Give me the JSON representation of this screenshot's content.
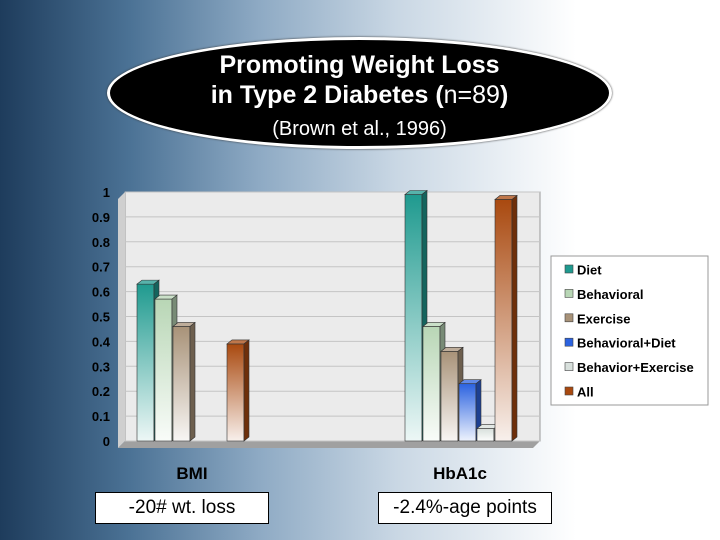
{
  "slide": {
    "title_line1": "Promoting Weight Loss",
    "title_line2_prefix": "in Type 2 Diabetes (",
    "title_line2_n": "n=89",
    "title_line2_suffix": ")",
    "subtitle": "(Brown et al., 1996)",
    "note_left": "-20# wt. loss",
    "note_right": "-2.4%-age points"
  },
  "chart_data": {
    "type": "bar",
    "categories": [
      "BMI",
      "HbA1c"
    ],
    "ylim": [
      0,
      1
    ],
    "yticks": [
      "0",
      "0.1",
      "0.2",
      "0.3",
      "0.4",
      "0.5",
      "0.6",
      "0.7",
      "0.8",
      "0.9",
      "1"
    ],
    "legend_position": "right",
    "series": [
      {
        "name": "Diet",
        "values": [
          0.63,
          0.99
        ],
        "color": "#1f9a8f"
      },
      {
        "name": "Behavioral",
        "values": [
          0.57,
          0.46
        ],
        "color": "#b8d6b5"
      },
      {
        "name": "Exercise",
        "values": [
          0.46,
          0.36
        ],
        "color": "#a89278"
      },
      {
        "name": "Behavioral+Diet",
        "values": [
          0,
          0.23
        ],
        "color": "#2c63e0"
      },
      {
        "name": "Behavior+Exercise",
        "values": [
          0,
          0.05
        ],
        "color": "#d8e0dc"
      },
      {
        "name": "All",
        "values": [
          0.39,
          0.97
        ],
        "color": "#a9490f"
      }
    ]
  }
}
